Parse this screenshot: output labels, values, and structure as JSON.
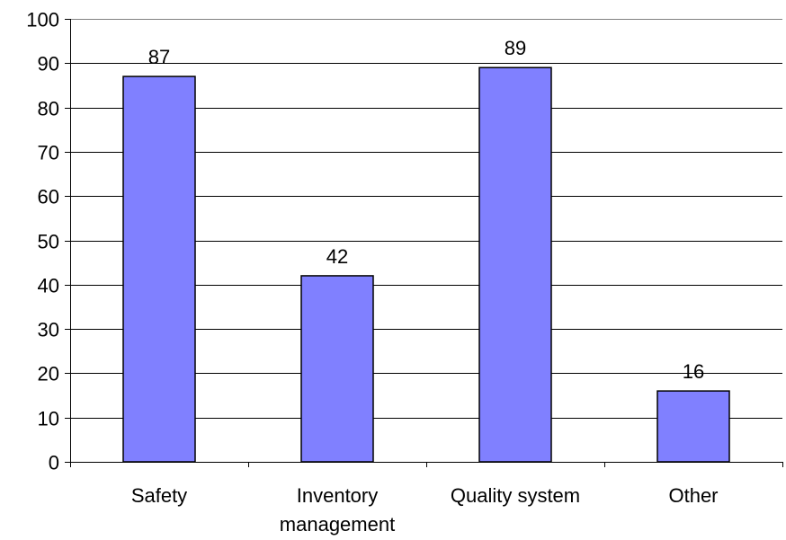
{
  "chart_data": {
    "type": "bar",
    "categories": [
      [
        "Safety"
      ],
      [
        "Inventory",
        "management"
      ],
      [
        "Quality system"
      ],
      [
        "Other"
      ]
    ],
    "values": [
      87,
      42,
      89,
      16
    ],
    "data_labels": [
      "87",
      "42",
      "89",
      "16"
    ],
    "ylim": [
      0,
      100
    ],
    "yticks": [
      0,
      10,
      20,
      30,
      40,
      50,
      60,
      70,
      80,
      90,
      100
    ],
    "title": "",
    "xlabel": "",
    "ylabel": "",
    "grid": true,
    "legend": "none",
    "bar_color": "#8080ff",
    "bar_edge_color": "#000000"
  }
}
